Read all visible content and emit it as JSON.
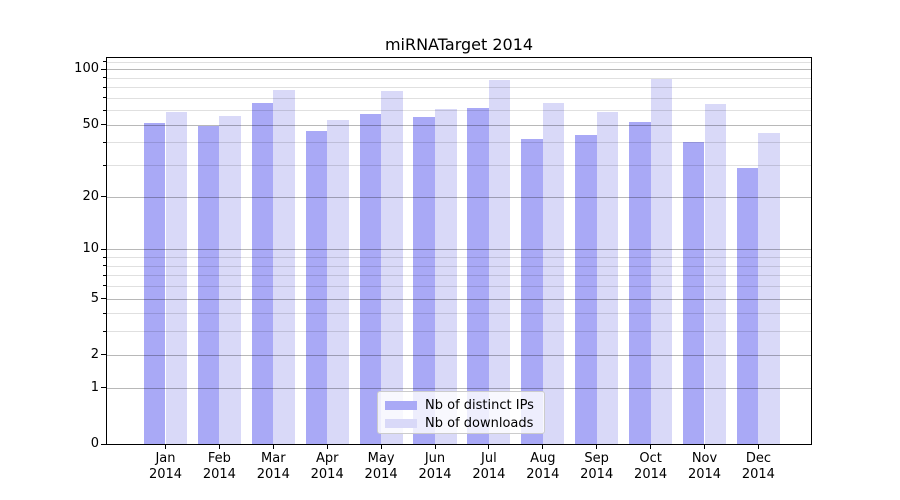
{
  "title": "miRNATarget 2014",
  "chart_data": {
    "type": "bar",
    "title": "miRNATarget 2014",
    "categories": [
      "Jan",
      "Feb",
      "Mar",
      "Apr",
      "May",
      "Jun",
      "Jul",
      "Aug",
      "Sep",
      "Oct",
      "Nov",
      "Dec"
    ],
    "year": "2014",
    "series": [
      {
        "name": "Nb of distinct IPs",
        "color": "#a9a9f6",
        "values": [
          51,
          49,
          66,
          46,
          57,
          55,
          62,
          42,
          44,
          52,
          40,
          29
        ]
      },
      {
        "name": "Nb of downloads",
        "color": "#d9d9f8",
        "values": [
          59,
          56,
          77,
          53,
          76,
          61,
          88,
          66,
          59,
          89,
          65,
          45
        ]
      }
    ],
    "xlabel": "",
    "ylabel": "",
    "yscale": "log(1+x)",
    "ylim": [
      0,
      115
    ],
    "y_major_ticks": [
      0,
      1,
      2,
      5,
      10,
      20,
      50,
      100
    ],
    "y_minor_ticks": [
      3,
      4,
      6,
      7,
      8,
      9,
      30,
      40,
      60,
      70,
      80,
      90,
      110
    ],
    "grid": true,
    "legend_position": "lower center"
  }
}
